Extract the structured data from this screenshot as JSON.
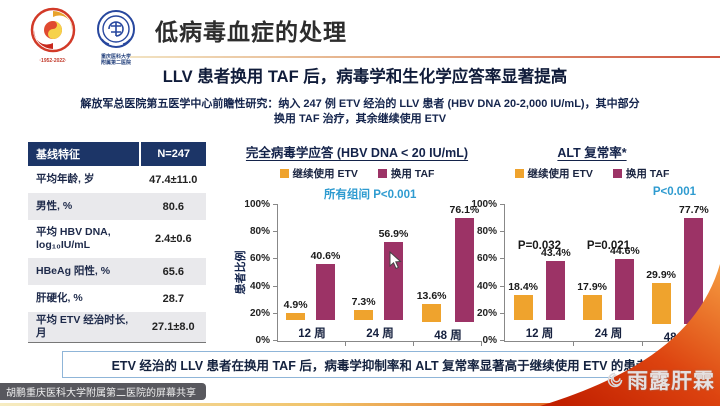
{
  "header": {
    "slide_title": "低病毒血症的处理",
    "logo1_caption": "·1952-2022·",
    "logo2_caption": "重庆医科大学\n附属第二医院"
  },
  "subtitle": "LLV 患者换用 TAF 后，病毒学和生化学应答率显著提高",
  "study_description": "解放军总医院第五医学中心前瞻性研究：纳入 247 例 ETV 经治的 LLV 患者 (HBV DNA 20-2,000 IU/mL)，其中部分\n换用 TAF 治疗，其余继续使用 ETV",
  "table": {
    "headers": [
      "基线特征",
      "N=247"
    ],
    "rows": [
      {
        "label": "平均年龄, 岁",
        "value": "47.4±11.0"
      },
      {
        "label": "男性, %",
        "value": "80.6"
      },
      {
        "label": "平均 HBV DNA,\nlog₁₀IU/mL",
        "value": "2.4±0.6"
      },
      {
        "label": "HBeAg 阳性, %",
        "value": "65.6"
      },
      {
        "label": "肝硬化, %",
        "value": "28.7"
      },
      {
        "label": "平均 ETV 经治时长, 月",
        "value": "27.1±8.0"
      }
    ]
  },
  "chart_data": [
    {
      "type": "bar",
      "title": "完全病毒学应答 (HBV DNA < 20 IU/mL)",
      "ylabel": "患者比例",
      "categories": [
        "12 周",
        "24 周",
        "48 周"
      ],
      "series": [
        {
          "name": "继续使用 ETV",
          "color": "#EFA32D",
          "values": [
            4.9,
            7.3,
            13.6
          ]
        },
        {
          "name": "换用 TAF",
          "color": "#9C3366",
          "values": [
            40.6,
            56.9,
            76.1
          ]
        }
      ],
      "ylim": [
        0,
        100
      ],
      "ytick_step": 20,
      "annotation": "所有组间 P<0.001",
      "group_p_values": [],
      "legend_position": "top",
      "grid": false
    },
    {
      "type": "bar",
      "title": "ALT 复常率*",
      "ylabel": "",
      "categories": [
        "12 周",
        "24 周",
        "48 周"
      ],
      "series": [
        {
          "name": "继续使用 ETV",
          "color": "#EFA32D",
          "values": [
            18.4,
            17.9,
            29.9
          ]
        },
        {
          "name": "换用 TAF",
          "color": "#9C3366",
          "values": [
            43.4,
            44.6,
            77.7
          ]
        }
      ],
      "ylim": [
        0,
        100
      ],
      "ytick_step": 20,
      "annotation": "P<0.001",
      "group_p_values": [
        "P=0.032",
        "P=0.021",
        ""
      ],
      "legend_position": "top",
      "grid": false
    }
  ],
  "conclusion": "ETV 经治的 LLV 患者在换用 TAF 后，病毒学抑制率和 ALT 复常率显著高于继续使用 ETV 的患者",
  "footer": {
    "screen_share_label": "胡鹏重庆医科大学附属第二医院的屏幕共享",
    "watermark": "雨露肝霖"
  },
  "colors": {
    "etv_bar": "#EFA32D",
    "taf_bar": "#9C3366",
    "p_value_blue": "#2E9BD0",
    "table_header": "#1C3567"
  }
}
